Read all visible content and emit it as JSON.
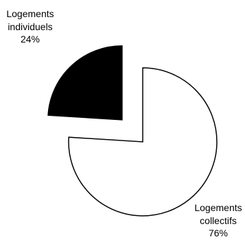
{
  "chart_data": {
    "type": "pie",
    "subtype": "exploded",
    "slices": [
      {
        "line1": "Logements",
        "line2": "individuels",
        "value_label": "24%",
        "value": 24,
        "fill": "#000000",
        "exploded": true
      },
      {
        "line1": "Logements",
        "line2": "collectifs",
        "value_label": "76%",
        "value": 76,
        "fill": "#ffffff",
        "exploded": false
      }
    ],
    "stroke_color": "#000000"
  }
}
